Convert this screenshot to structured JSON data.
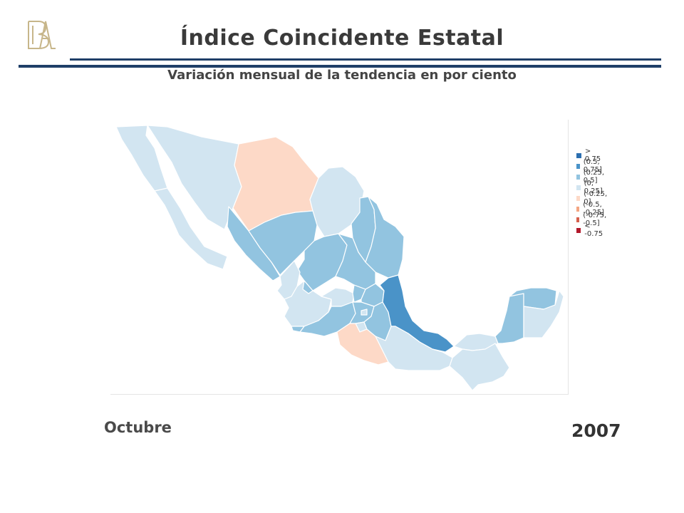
{
  "header": {
    "title": "Índice Coincidente Estatal",
    "subtitle": "Variación mensual de la tendencia en por ciento"
  },
  "legend": {
    "items": [
      {
        "label": "> 0.75",
        "color": "#2c6fb0"
      },
      {
        "label": "(0.5, 0.75]",
        "color": "#4a93c8"
      },
      {
        "label": "(0.25, 0.5]",
        "color": "#92c4e0"
      },
      {
        "label": "(0, 0.25]",
        "color": "#d2e5f1"
      },
      {
        "label": "(-0.25, 0]",
        "color": "#fdd9c7"
      },
      {
        "label": "(-0.5, -0.25]",
        "color": "#f4a582"
      },
      {
        "label": "(-0.75, -0.5]",
        "color": "#d6604d"
      },
      {
        "label": "< -0.75",
        "color": "#b2182b"
      }
    ]
  },
  "period": {
    "month": "Octubre",
    "year": "2007"
  },
  "colors": {
    "rule": "#1f3f68",
    "logo": "#c7b68a"
  }
}
